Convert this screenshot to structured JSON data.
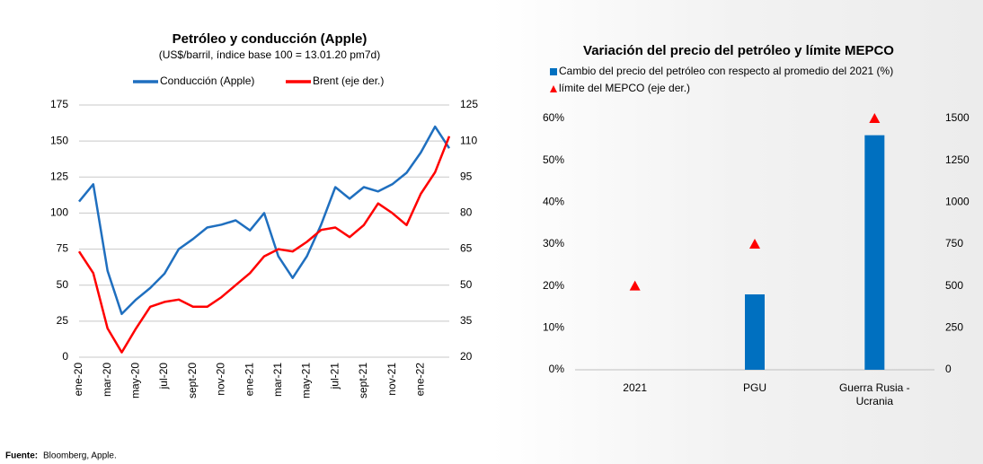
{
  "chart_data": [
    {
      "type": "line",
      "title": "Petróleo y conducción (Apple)",
      "subtitle": "(US$/barril, índice base 100 = 13.01.20 pm7d)",
      "categories": [
        "ene-20",
        null,
        "mar-20",
        null,
        "may-20",
        null,
        "jul-20",
        null,
        "sept-20",
        null,
        "nov-20",
        null,
        "ene-21",
        null,
        "mar-21",
        null,
        "may-21",
        null,
        "jul-21",
        null,
        "sept-21",
        null,
        "nov-21",
        null,
        "ene-22",
        null,
        null
      ],
      "series": [
        {
          "name": "Conducción (Apple)",
          "color": "#1f6fbf",
          "values": [
            108,
            120,
            60,
            30,
            40,
            48,
            58,
            75,
            82,
            90,
            92,
            95,
            88,
            100,
            70,
            55,
            70,
            92,
            118,
            110,
            118,
            115,
            120,
            128,
            142,
            160,
            145
          ]
        },
        {
          "name": "Brent (eje der.)",
          "color": "#ff0000",
          "axis": "y2",
          "values": [
            64,
            55,
            32,
            22,
            32,
            41,
            43,
            44,
            41,
            41,
            45,
            50,
            55,
            62,
            65,
            64,
            68,
            73,
            74,
            70,
            75,
            84,
            80,
            75,
            88,
            97,
            112
          ]
        }
      ],
      "ylim": [
        0,
        175
      ],
      "yticks": [
        0,
        25,
        50,
        75,
        100,
        125,
        150,
        175
      ],
      "y2lim": [
        20,
        125
      ],
      "y2ticks": [
        20,
        35,
        50,
        65,
        80,
        95,
        110,
        125
      ],
      "grid": true,
      "legend": "top"
    },
    {
      "type": "bar",
      "title": "Variación del precio del petróleo y límite MEPCO",
      "categories": [
        "2021",
        "PGU",
        "Guerra Rusia - Ucrania"
      ],
      "series": [
        {
          "name": "Cambio del precio del petróleo con respecto al promedio del 2021 (%)",
          "color": "#0070c0",
          "values": [
            0,
            18,
            56
          ]
        },
        {
          "name": "límite del MEPCO (eje der.)",
          "color": "#ff0000",
          "axis": "y2",
          "marker": "triangle",
          "values": [
            500,
            750,
            1500
          ]
        }
      ],
      "ylim": [
        0,
        60
      ],
      "yticks": [
        {
          "value": 0,
          "label": "0%"
        },
        {
          "value": 10,
          "label": "10%"
        },
        {
          "value": 20,
          "label": "20%"
        },
        {
          "value": 30,
          "label": "30%"
        },
        {
          "value": 40,
          "label": "40%"
        },
        {
          "value": 50,
          "label": "50%"
        },
        {
          "value": 60,
          "label": "60%"
        }
      ],
      "y2lim": [
        0,
        1500
      ],
      "y2ticks": [
        0,
        250,
        500,
        750,
        1000,
        1250,
        1500
      ],
      "grid": false,
      "legend": "top-left"
    }
  ],
  "footer": {
    "source_label": "Fuente:",
    "source": "Bloomberg, Apple."
  }
}
